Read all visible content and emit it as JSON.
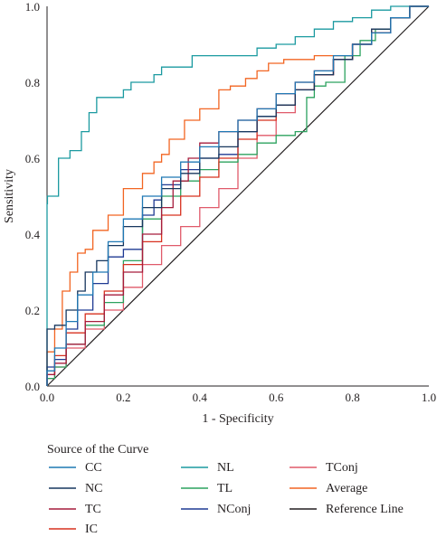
{
  "chart_data": {
    "type": "line",
    "title": "",
    "xlabel": "1 - Specificity",
    "ylabel": "Sensitivity",
    "xlim": [
      0,
      1
    ],
    "ylim": [
      0,
      1
    ],
    "xticks": [
      "0.0",
      "0.2",
      "0.4",
      "0.6",
      "0.8",
      "1.0"
    ],
    "yticks": [
      "0.0",
      "0.2",
      "0.4",
      "0.6",
      "0.8",
      "1.0"
    ],
    "grid": false,
    "legend": {
      "title": "Source of the Curve",
      "placement": "bottom",
      "columns": 3
    },
    "series": [
      {
        "name": "CC",
        "color": "#1f78b4",
        "x": [
          0,
          0.02,
          0.05,
          0.08,
          0.12,
          0.16,
          0.2,
          0.25,
          0.3,
          0.35,
          0.4,
          0.45,
          0.5,
          0.55,
          0.6,
          0.65,
          0.7,
          0.75,
          0.8,
          0.85,
          0.9,
          0.95,
          1.0
        ],
        "y": [
          0,
          0.04,
          0.1,
          0.17,
          0.24,
          0.3,
          0.38,
          0.44,
          0.5,
          0.55,
          0.59,
          0.63,
          0.67,
          0.7,
          0.73,
          0.77,
          0.8,
          0.83,
          0.87,
          0.9,
          0.93,
          0.97,
          1.0
        ]
      },
      {
        "name": "NC",
        "color": "#17375e",
        "x": [
          0,
          0.02,
          0.05,
          0.08,
          0.1,
          0.13,
          0.16,
          0.2,
          0.25,
          0.3,
          0.35,
          0.4,
          0.45,
          0.5,
          0.55,
          0.6,
          0.65,
          0.7,
          0.75,
          0.8,
          0.85,
          0.9,
          0.95,
          1.0
        ],
        "y": [
          0,
          0.15,
          0.16,
          0.2,
          0.25,
          0.3,
          0.33,
          0.37,
          0.42,
          0.47,
          0.52,
          0.56,
          0.6,
          0.63,
          0.67,
          0.71,
          0.74,
          0.78,
          0.82,
          0.86,
          0.9,
          0.94,
          0.97,
          1.0
        ]
      },
      {
        "name": "TC",
        "color": "#a61c3c",
        "x": [
          0,
          0.02,
          0.05,
          0.1,
          0.15,
          0.2,
          0.25,
          0.3,
          0.33,
          0.37,
          0.4,
          0.45,
          0.5,
          0.55,
          0.6,
          0.65,
          0.7,
          0.75,
          0.8,
          0.85,
          0.9,
          0.95,
          1.0
        ],
        "y": [
          0,
          0.03,
          0.06,
          0.11,
          0.17,
          0.24,
          0.3,
          0.4,
          0.47,
          0.54,
          0.6,
          0.64,
          0.67,
          0.7,
          0.73,
          0.77,
          0.8,
          0.83,
          0.86,
          0.9,
          0.93,
          0.97,
          1.0
        ]
      },
      {
        "name": "IC",
        "color": "#d7301f",
        "x": [
          0,
          0.02,
          0.05,
          0.1,
          0.15,
          0.2,
          0.25,
          0.3,
          0.35,
          0.4,
          0.45,
          0.5,
          0.55,
          0.6,
          0.65,
          0.7,
          0.75,
          0.8,
          0.85,
          0.9,
          0.95,
          1.0
        ],
        "y": [
          0,
          0.03,
          0.08,
          0.14,
          0.19,
          0.25,
          0.32,
          0.38,
          0.45,
          0.5,
          0.55,
          0.6,
          0.65,
          0.7,
          0.74,
          0.78,
          0.82,
          0.86,
          0.9,
          0.93,
          0.97,
          1.0
        ]
      },
      {
        "name": "NL",
        "color": "#1b9aa0",
        "x": [
          0,
          0.001,
          0.03,
          0.06,
          0.09,
          0.11,
          0.13,
          0.2,
          0.22,
          0.28,
          0.3,
          0.38,
          0.44,
          0.55,
          0.6,
          0.65,
          0.7,
          0.75,
          0.8,
          0.85,
          0.9,
          0.95,
          1.0
        ],
        "y": [
          0,
          0.48,
          0.5,
          0.6,
          0.62,
          0.67,
          0.72,
          0.76,
          0.78,
          0.8,
          0.82,
          0.84,
          0.87,
          0.87,
          0.89,
          0.9,
          0.92,
          0.94,
          0.96,
          0.97,
          0.99,
          1.0,
          1.0
        ]
      },
      {
        "name": "TL",
        "color": "#2ca25f",
        "x": [
          0,
          0.02,
          0.05,
          0.1,
          0.15,
          0.2,
          0.25,
          0.3,
          0.35,
          0.4,
          0.45,
          0.5,
          0.55,
          0.6,
          0.65,
          0.68,
          0.7,
          0.73,
          0.78,
          0.82,
          0.86,
          0.9,
          0.95,
          1.0
        ],
        "y": [
          0,
          0.02,
          0.05,
          0.11,
          0.16,
          0.22,
          0.33,
          0.44,
          0.5,
          0.54,
          0.57,
          0.59,
          0.61,
          0.64,
          0.66,
          0.67,
          0.76,
          0.79,
          0.8,
          0.87,
          0.91,
          0.94,
          0.97,
          1.0
        ]
      },
      {
        "name": "NConj",
        "color": "#1f3a93",
        "x": [
          0,
          0.02,
          0.05,
          0.08,
          0.12,
          0.16,
          0.2,
          0.25,
          0.28,
          0.3,
          0.35,
          0.4,
          0.45,
          0.5,
          0.55,
          0.6,
          0.65,
          0.7,
          0.75,
          0.8,
          0.85,
          0.9,
          0.95,
          1.0
        ],
        "y": [
          0,
          0.05,
          0.07,
          0.15,
          0.2,
          0.27,
          0.34,
          0.36,
          0.45,
          0.49,
          0.53,
          0.57,
          0.6,
          0.61,
          0.67,
          0.71,
          0.74,
          0.78,
          0.82,
          0.86,
          0.9,
          0.93,
          0.97,
          1.0
        ]
      },
      {
        "name": "TConj",
        "color": "#e05a6a",
        "x": [
          0,
          0.02,
          0.05,
          0.1,
          0.15,
          0.2,
          0.25,
          0.3,
          0.35,
          0.4,
          0.45,
          0.5,
          0.55,
          0.6,
          0.65,
          0.7,
          0.75,
          0.8,
          0.85,
          0.9,
          0.95,
          1.0
        ],
        "y": [
          0,
          0.02,
          0.05,
          0.1,
          0.15,
          0.2,
          0.26,
          0.32,
          0.37,
          0.42,
          0.47,
          0.52,
          0.6,
          0.66,
          0.72,
          0.78,
          0.82,
          0.86,
          0.9,
          0.94,
          0.97,
          1.0
        ]
      },
      {
        "name": "Average",
        "color": "#f26522",
        "x": [
          0,
          0.02,
          0.04,
          0.06,
          0.08,
          0.1,
          0.12,
          0.16,
          0.2,
          0.25,
          0.28,
          0.3,
          0.32,
          0.36,
          0.4,
          0.45,
          0.48,
          0.52,
          0.55,
          0.58,
          0.62,
          0.7,
          0.8,
          0.85,
          0.9,
          0.95,
          1.0
        ],
        "y": [
          0,
          0.09,
          0.15,
          0.25,
          0.3,
          0.35,
          0.36,
          0.41,
          0.45,
          0.52,
          0.56,
          0.59,
          0.61,
          0.65,
          0.7,
          0.73,
          0.78,
          0.79,
          0.81,
          0.83,
          0.85,
          0.86,
          0.87,
          0.9,
          0.94,
          0.97,
          1.0
        ]
      },
      {
        "name": "Reference Line",
        "color": "#231f20",
        "x": [
          0,
          1
        ],
        "y": [
          0,
          1
        ]
      }
    ]
  }
}
